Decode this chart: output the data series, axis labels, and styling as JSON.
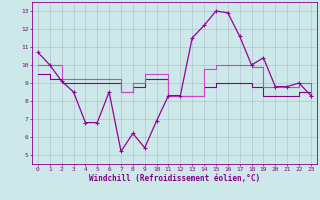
{
  "x_ticks": [
    0,
    1,
    2,
    3,
    4,
    5,
    6,
    7,
    8,
    9,
    10,
    11,
    12,
    13,
    14,
    15,
    16,
    17,
    18,
    19,
    20,
    21,
    22,
    23
  ],
  "series1": {
    "x": [
      0,
      1,
      2,
      3,
      4,
      5,
      6,
      7,
      8,
      9,
      10,
      11,
      12,
      13,
      14,
      15,
      16,
      17,
      18,
      19,
      20,
      21,
      22,
      23
    ],
    "y": [
      10.7,
      10.0,
      9.1,
      8.5,
      6.8,
      6.8,
      8.5,
      5.2,
      6.2,
      5.4,
      6.9,
      8.3,
      8.3,
      11.5,
      12.2,
      13.0,
      12.9,
      11.6,
      10.0,
      10.4,
      8.8,
      8.8,
      9.0,
      8.3
    ],
    "color": "#990099",
    "linewidth": 0.9
  },
  "series2": {
    "x": [
      0,
      1,
      2,
      3,
      4,
      5,
      6,
      7,
      8,
      9,
      10,
      11,
      12,
      13,
      14,
      15,
      16,
      17,
      18,
      19,
      20,
      21,
      22,
      23
    ],
    "y": [
      10.0,
      10.0,
      9.2,
      9.2,
      9.2,
      9.2,
      9.2,
      8.5,
      9.0,
      9.5,
      9.5,
      8.3,
      8.3,
      8.3,
      9.8,
      10.0,
      10.0,
      10.0,
      9.9,
      8.8,
      8.8,
      8.8,
      9.0,
      8.3
    ],
    "color": "#cc44cc",
    "linewidth": 0.8
  },
  "series3": {
    "x": [
      0,
      1,
      2,
      3,
      4,
      5,
      6,
      7,
      8,
      9,
      10,
      11,
      12,
      13,
      14,
      15,
      16,
      17,
      18,
      19,
      20,
      21,
      22,
      23
    ],
    "y": [
      9.5,
      9.2,
      9.0,
      9.0,
      9.0,
      9.0,
      9.0,
      8.5,
      8.8,
      9.2,
      9.2,
      8.3,
      8.3,
      8.3,
      8.8,
      9.0,
      9.0,
      9.0,
      8.8,
      8.3,
      8.3,
      8.3,
      8.5,
      8.3
    ],
    "color": "#880088",
    "linewidth": 0.8
  },
  "ylim": [
    4.5,
    13.5
  ],
  "yticks": [
    5,
    6,
    7,
    8,
    9,
    10,
    11,
    12,
    13
  ],
  "xlabel": "Windchill (Refroidissement éolien,°C)",
  "bg_color": "#cce8e8",
  "grid_color": "#aabbcc",
  "line_color": "#880088",
  "tick_fontsize": 4.5,
  "xlabel_fontsize": 5.5
}
